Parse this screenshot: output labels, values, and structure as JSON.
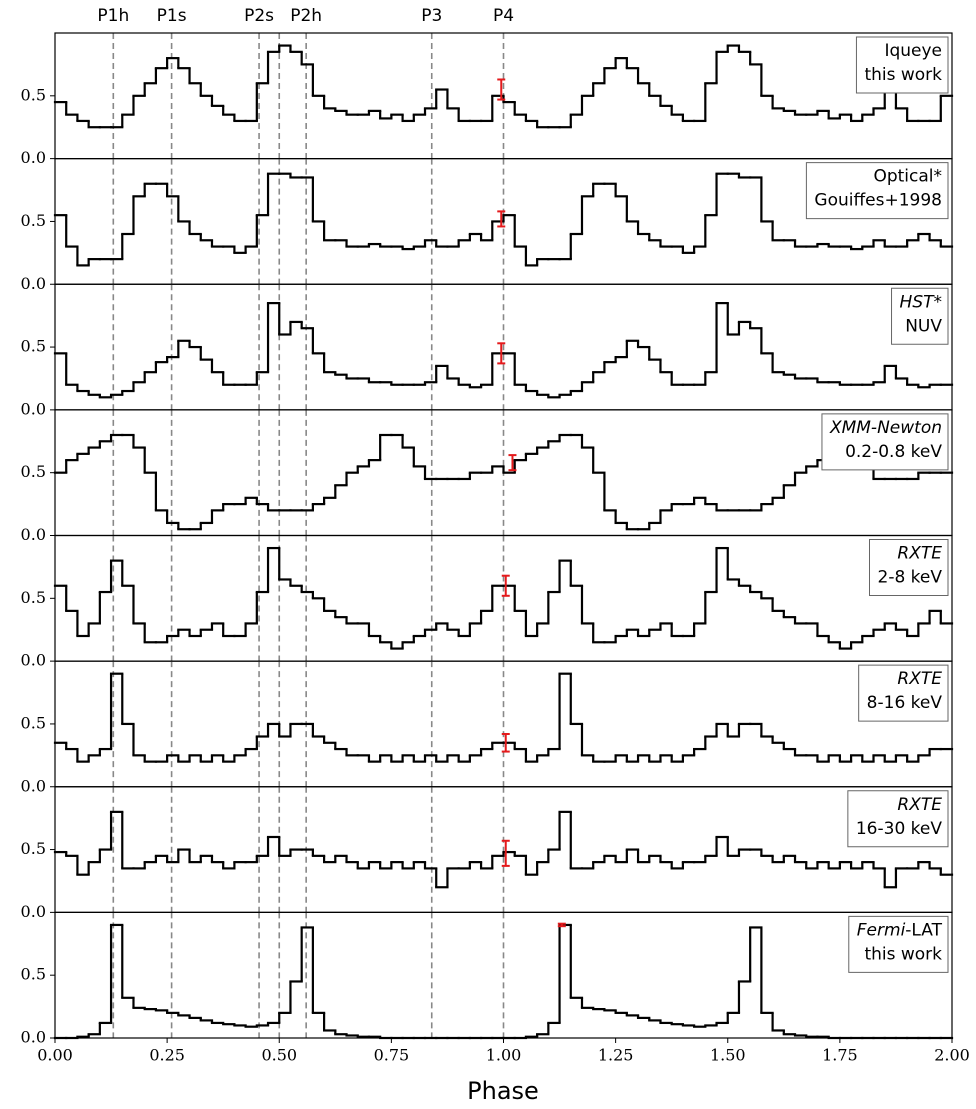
{
  "chart_data": {
    "type": "step-panels",
    "x_label": "Phase",
    "xlim": [
      0,
      2
    ],
    "xticks": [
      {
        "value": 0,
        "label": "0.00"
      },
      {
        "value": 0.25,
        "label": "0.25"
      },
      {
        "value": 0.5,
        "label": "0.50"
      },
      {
        "value": 0.75,
        "label": "0.75"
      },
      {
        "value": 1,
        "label": "1.00"
      },
      {
        "value": 1.25,
        "label": "1.25"
      },
      {
        "value": 1.5,
        "label": "1.50"
      },
      {
        "value": 1.75,
        "label": "1.75"
      },
      {
        "value": 2,
        "label": "2.00"
      }
    ],
    "ylim": [
      0,
      1.0
    ],
    "yticks": [
      {
        "value": 0,
        "label": "0.0"
      },
      0.5
    ],
    "color": "#000000",
    "error_color": "#e41a1c",
    "marker_color": "#888888",
    "markers": [
      {
        "x": 0.13,
        "label": "P1h"
      },
      {
        "x": 0.26,
        "label": "P1s"
      },
      {
        "x": 0.455,
        "label": "P2s"
      },
      {
        "x": 0.5,
        "label": null
      },
      {
        "x": 0.56,
        "label": "P2h"
      },
      {
        "x": 0.84,
        "label": "P3"
      },
      {
        "x": 1.0,
        "label": "P4"
      }
    ],
    "bins": [
      0,
      0.025,
      0.05,
      0.075,
      0.1,
      0.125,
      0.15,
      0.175,
      0.2,
      0.225,
      0.25,
      0.275,
      0.3,
      0.325,
      0.35,
      0.375,
      0.4,
      0.425,
      0.45,
      0.475,
      0.5,
      0.525,
      0.55,
      0.575,
      0.6,
      0.625,
      0.65,
      0.675,
      0.7,
      0.725,
      0.75,
      0.775,
      0.8,
      0.825,
      0.85,
      0.875,
      0.9,
      0.925,
      0.95,
      0.975,
      1.0,
      1.025,
      1.05,
      1.075,
      1.1,
      1.125,
      1.15,
      1.175,
      1.2,
      1.225,
      1.25,
      1.275,
      1.3,
      1.325,
      1.35,
      1.375,
      1.4,
      1.425,
      1.45,
      1.475,
      1.5,
      1.525,
      1.55,
      1.575,
      1.6,
      1.625,
      1.65,
      1.675,
      1.7,
      1.725,
      1.75,
      1.775,
      1.8,
      1.825,
      1.85,
      1.875,
      1.9,
      1.925,
      1.95,
      1.975,
      2.0
    ],
    "panels": [
      {
        "label": [
          [
            {
              "text": "Iqueye",
              "italic": false
            }
          ],
          [
            {
              "text": "this work",
              "italic": false
            }
          ]
        ],
        "values": [
          0.45,
          0.35,
          0.3,
          0.25,
          0.25,
          0.25,
          0.35,
          0.5,
          0.6,
          0.72,
          0.8,
          0.72,
          0.6,
          0.5,
          0.42,
          0.35,
          0.3,
          0.3,
          0.6,
          0.85,
          0.9,
          0.85,
          0.75,
          0.5,
          0.4,
          0.38,
          0.35,
          0.35,
          0.38,
          0.32,
          0.35,
          0.3,
          0.35,
          0.4,
          0.55,
          0.4,
          0.3,
          0.3,
          0.3,
          0.5,
          0.45,
          0.35,
          0.3,
          0.25,
          0.25,
          0.25,
          0.35,
          0.5,
          0.6,
          0.72,
          0.8,
          0.72,
          0.6,
          0.5,
          0.42,
          0.35,
          0.3,
          0.3,
          0.6,
          0.85,
          0.9,
          0.85,
          0.75,
          0.5,
          0.4,
          0.38,
          0.35,
          0.35,
          0.38,
          0.32,
          0.35,
          0.3,
          0.35,
          0.4,
          0.55,
          0.4,
          0.3,
          0.3,
          0.3,
          0.5
        ],
        "errorbar": {
          "x": 0.995,
          "value": 0.55,
          "error": 0.08
        }
      },
      {
        "label": [
          [
            {
              "text": "Optical*",
              "italic": false
            }
          ],
          [
            {
              "text": "Gouiffes+1998",
              "italic": false
            }
          ]
        ],
        "values": [
          0.55,
          0.3,
          0.15,
          0.2,
          0.2,
          0.2,
          0.4,
          0.7,
          0.8,
          0.8,
          0.7,
          0.5,
          0.4,
          0.35,
          0.3,
          0.3,
          0.25,
          0.3,
          0.55,
          0.88,
          0.88,
          0.85,
          0.85,
          0.5,
          0.35,
          0.35,
          0.3,
          0.3,
          0.32,
          0.3,
          0.3,
          0.28,
          0.3,
          0.35,
          0.3,
          0.3,
          0.35,
          0.4,
          0.35,
          0.5,
          0.55,
          0.3,
          0.15,
          0.2,
          0.2,
          0.2,
          0.4,
          0.7,
          0.8,
          0.8,
          0.7,
          0.5,
          0.4,
          0.35,
          0.3,
          0.3,
          0.25,
          0.3,
          0.55,
          0.88,
          0.88,
          0.85,
          0.85,
          0.5,
          0.35,
          0.35,
          0.3,
          0.3,
          0.32,
          0.3,
          0.3,
          0.28,
          0.3,
          0.35,
          0.3,
          0.3,
          0.35,
          0.4,
          0.35,
          0.3
        ],
        "errorbar": {
          "x": 0.995,
          "value": 0.52,
          "error": 0.06
        }
      },
      {
        "label": [
          [
            {
              "text": "HST*",
              "italic": true
            }
          ],
          [
            {
              "text": "NUV",
              "italic": false
            }
          ]
        ],
        "values": [
          0.45,
          0.2,
          0.15,
          0.12,
          0.1,
          0.12,
          0.15,
          0.22,
          0.3,
          0.38,
          0.42,
          0.55,
          0.5,
          0.4,
          0.3,
          0.2,
          0.2,
          0.2,
          0.3,
          0.85,
          0.6,
          0.7,
          0.65,
          0.45,
          0.3,
          0.28,
          0.25,
          0.25,
          0.22,
          0.22,
          0.2,
          0.2,
          0.2,
          0.22,
          0.35,
          0.25,
          0.2,
          0.18,
          0.2,
          0.45,
          0.45,
          0.2,
          0.15,
          0.12,
          0.1,
          0.12,
          0.15,
          0.22,
          0.3,
          0.38,
          0.42,
          0.55,
          0.5,
          0.4,
          0.3,
          0.2,
          0.2,
          0.2,
          0.3,
          0.85,
          0.6,
          0.7,
          0.65,
          0.45,
          0.3,
          0.28,
          0.25,
          0.25,
          0.22,
          0.22,
          0.2,
          0.2,
          0.2,
          0.22,
          0.35,
          0.25,
          0.2,
          0.18,
          0.2,
          0.2
        ],
        "errorbar": {
          "x": 0.995,
          "value": 0.45,
          "error": 0.08
        }
      },
      {
        "label": [
          [
            {
              "text": "XMM-Newton",
              "italic": true
            }
          ],
          [
            {
              "text": "0.2-0.8 keV",
              "italic": false
            }
          ]
        ],
        "values": [
          0.5,
          0.6,
          0.65,
          0.7,
          0.75,
          0.8,
          0.8,
          0.7,
          0.5,
          0.2,
          0.1,
          0.05,
          0.05,
          0.1,
          0.2,
          0.25,
          0.25,
          0.3,
          0.25,
          0.2,
          0.2,
          0.2,
          0.2,
          0.25,
          0.3,
          0.4,
          0.5,
          0.55,
          0.6,
          0.8,
          0.8,
          0.7,
          0.55,
          0.45,
          0.45,
          0.45,
          0.45,
          0.5,
          0.5,
          0.55,
          0.5,
          0.6,
          0.65,
          0.7,
          0.75,
          0.8,
          0.8,
          0.7,
          0.5,
          0.2,
          0.1,
          0.05,
          0.05,
          0.1,
          0.2,
          0.25,
          0.25,
          0.3,
          0.25,
          0.2,
          0.2,
          0.2,
          0.2,
          0.25,
          0.3,
          0.4,
          0.5,
          0.55,
          0.6,
          0.8,
          0.8,
          0.7,
          0.55,
          0.45,
          0.45,
          0.45,
          0.45,
          0.5,
          0.5,
          0.5
        ],
        "errorbar": {
          "x": 1.02,
          "value": 0.58,
          "error": 0.06
        }
      },
      {
        "label": [
          [
            {
              "text": "RXTE",
              "italic": true
            }
          ],
          [
            {
              "text": "2-8 keV",
              "italic": false
            }
          ]
        ],
        "values": [
          0.6,
          0.4,
          0.2,
          0.3,
          0.55,
          0.8,
          0.6,
          0.3,
          0.15,
          0.15,
          0.2,
          0.25,
          0.2,
          0.25,
          0.3,
          0.2,
          0.2,
          0.3,
          0.55,
          0.9,
          0.65,
          0.6,
          0.55,
          0.5,
          0.4,
          0.35,
          0.3,
          0.3,
          0.2,
          0.15,
          0.1,
          0.15,
          0.2,
          0.25,
          0.3,
          0.25,
          0.2,
          0.3,
          0.4,
          0.6,
          0.6,
          0.4,
          0.2,
          0.3,
          0.55,
          0.8,
          0.6,
          0.3,
          0.15,
          0.15,
          0.2,
          0.25,
          0.2,
          0.25,
          0.3,
          0.2,
          0.2,
          0.3,
          0.55,
          0.9,
          0.65,
          0.6,
          0.55,
          0.5,
          0.4,
          0.35,
          0.3,
          0.3,
          0.2,
          0.15,
          0.1,
          0.15,
          0.2,
          0.25,
          0.3,
          0.25,
          0.2,
          0.3,
          0.4,
          0.3
        ],
        "errorbar": {
          "x": 1.005,
          "value": 0.6,
          "error": 0.08
        }
      },
      {
        "label": [
          [
            {
              "text": "RXTE",
              "italic": true
            }
          ],
          [
            {
              "text": "8-16 keV",
              "italic": false
            }
          ]
        ],
        "values": [
          0.35,
          0.3,
          0.2,
          0.25,
          0.3,
          0.9,
          0.5,
          0.25,
          0.2,
          0.2,
          0.25,
          0.2,
          0.25,
          0.2,
          0.25,
          0.2,
          0.25,
          0.3,
          0.4,
          0.5,
          0.4,
          0.5,
          0.5,
          0.4,
          0.35,
          0.3,
          0.25,
          0.25,
          0.2,
          0.25,
          0.2,
          0.25,
          0.2,
          0.25,
          0.2,
          0.25,
          0.2,
          0.25,
          0.3,
          0.35,
          0.35,
          0.3,
          0.2,
          0.25,
          0.3,
          0.9,
          0.5,
          0.25,
          0.2,
          0.2,
          0.25,
          0.2,
          0.25,
          0.2,
          0.25,
          0.2,
          0.25,
          0.3,
          0.4,
          0.5,
          0.4,
          0.5,
          0.5,
          0.4,
          0.35,
          0.3,
          0.25,
          0.25,
          0.2,
          0.25,
          0.2,
          0.25,
          0.2,
          0.25,
          0.2,
          0.25,
          0.2,
          0.25,
          0.3,
          0.3
        ],
        "errorbar": {
          "x": 1.005,
          "value": 0.35,
          "error": 0.07
        }
      },
      {
        "label": [
          [
            {
              "text": "RXTE",
              "italic": true
            }
          ],
          [
            {
              "text": "16-30 keV",
              "italic": false
            }
          ]
        ],
        "values": [
          0.48,
          0.45,
          0.3,
          0.4,
          0.5,
          0.8,
          0.35,
          0.35,
          0.4,
          0.45,
          0.4,
          0.5,
          0.4,
          0.45,
          0.4,
          0.35,
          0.4,
          0.4,
          0.45,
          0.6,
          0.45,
          0.5,
          0.5,
          0.45,
          0.4,
          0.45,
          0.4,
          0.35,
          0.4,
          0.35,
          0.4,
          0.35,
          0.4,
          0.35,
          0.2,
          0.35,
          0.35,
          0.4,
          0.35,
          0.45,
          0.48,
          0.45,
          0.3,
          0.4,
          0.5,
          0.8,
          0.35,
          0.35,
          0.4,
          0.45,
          0.4,
          0.5,
          0.4,
          0.45,
          0.4,
          0.35,
          0.4,
          0.4,
          0.45,
          0.6,
          0.45,
          0.5,
          0.5,
          0.45,
          0.4,
          0.45,
          0.4,
          0.35,
          0.4,
          0.35,
          0.4,
          0.35,
          0.4,
          0.35,
          0.2,
          0.35,
          0.35,
          0.4,
          0.35,
          0.3
        ],
        "errorbar": {
          "x": 1.005,
          "value": 0.47,
          "error": 0.1
        }
      },
      {
        "label": [
          [
            {
              "text": "Fermi",
              "italic": true
            },
            {
              "text": "-LAT",
              "italic": false
            }
          ],
          [
            {
              "text": "this work",
              "italic": false
            }
          ]
        ],
        "values": [
          0,
          0,
          0.01,
          0.03,
          0.12,
          0.9,
          0.32,
          0.24,
          0.23,
          0.22,
          0.2,
          0.18,
          0.16,
          0.14,
          0.12,
          0.11,
          0.1,
          0.09,
          0.1,
          0.12,
          0.2,
          0.45,
          0.88,
          0.2,
          0.06,
          0.03,
          0.02,
          0.01,
          0.01,
          0,
          0,
          0,
          0,
          0,
          0,
          0,
          0,
          0,
          0,
          0,
          0,
          0,
          0.01,
          0.03,
          0.12,
          0.9,
          0.32,
          0.24,
          0.23,
          0.22,
          0.2,
          0.18,
          0.16,
          0.14,
          0.12,
          0.11,
          0.1,
          0.09,
          0.1,
          0.12,
          0.2,
          0.45,
          0.88,
          0.2,
          0.06,
          0.03,
          0.02,
          0.01,
          0.01,
          0,
          0,
          0,
          0,
          0,
          0,
          0,
          0,
          0,
          0,
          0
        ],
        "errorbar": {
          "x": 1.13,
          "value": 0.9,
          "error": 0.01
        }
      }
    ]
  }
}
